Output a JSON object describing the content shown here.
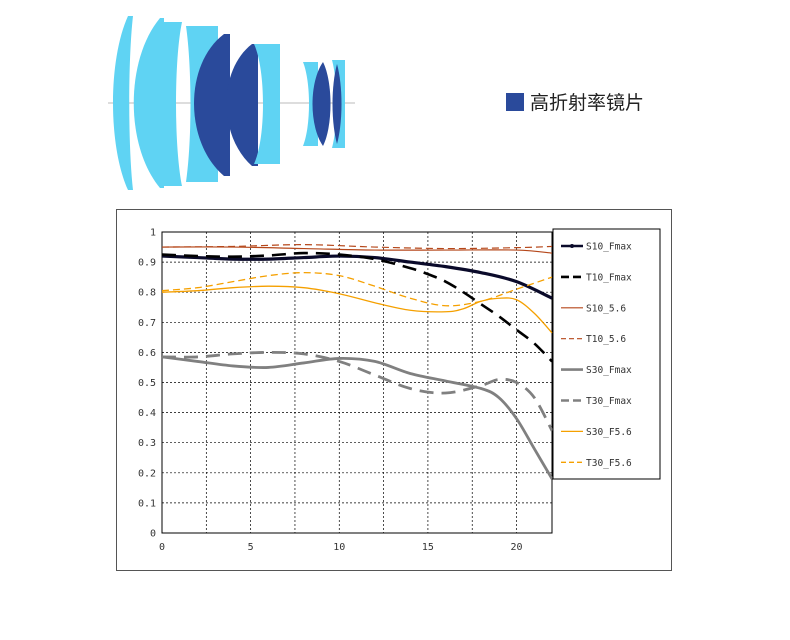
{
  "lens_legend": {
    "label": "高折射率镜片",
    "color": "#2a4a9b"
  },
  "colors": {
    "light_lens": "#5fd3f3",
    "dark_lens": "#2a4a9b"
  },
  "chart_data": {
    "type": "line",
    "title": "",
    "xlabel": "",
    "ylabel": "",
    "xlim": [
      0,
      22
    ],
    "ylim": [
      0,
      1
    ],
    "x_ticks": [
      0,
      5,
      10,
      15,
      20
    ],
    "y_ticks": [
      0.1,
      0.2,
      0.3,
      0.4,
      0.5,
      0.6,
      0.7,
      0.8,
      0.9,
      1
    ],
    "y_tick_labels": [
      "0.1",
      "0.2",
      "0.3",
      "0.4",
      "0.5",
      "0.6",
      "0.7",
      "0.8",
      "0.9",
      "1"
    ],
    "grid": true,
    "legend_position": "right",
    "series": [
      {
        "name": "S10_Fmax",
        "color": "#0a0a2a",
        "dash": "solid",
        "width": 3.2,
        "x": [
          0,
          2,
          4,
          6,
          8,
          10,
          12,
          14,
          16,
          18,
          20,
          22
        ],
        "y": [
          0.92,
          0.915,
          0.91,
          0.91,
          0.915,
          0.92,
          0.915,
          0.9,
          0.885,
          0.865,
          0.835,
          0.78
        ]
      },
      {
        "name": "T10_Fmax",
        "color": "#000000",
        "dash": "dashed",
        "width": 2.6,
        "x": [
          0,
          2,
          4,
          6,
          8,
          10,
          12,
          14,
          15,
          16,
          17,
          18,
          19,
          20,
          21,
          22
        ],
        "y": [
          0.925,
          0.92,
          0.918,
          0.922,
          0.93,
          0.925,
          0.91,
          0.88,
          0.86,
          0.835,
          0.8,
          0.76,
          0.72,
          0.675,
          0.63,
          0.57
        ]
      },
      {
        "name": "S10_5.6",
        "color": "#b5471a",
        "dash": "solid",
        "width": 1.2,
        "x": [
          0,
          4,
          8,
          12,
          16,
          20,
          22
        ],
        "y": [
          0.95,
          0.95,
          0.945,
          0.94,
          0.94,
          0.94,
          0.93
        ]
      },
      {
        "name": "T10_5.6",
        "color": "#b5471a",
        "dash": "dashed",
        "width": 1.2,
        "x": [
          0,
          4,
          8,
          12,
          16,
          20,
          22
        ],
        "y": [
          0.95,
          0.952,
          0.958,
          0.95,
          0.945,
          0.948,
          0.952
        ]
      },
      {
        "name": "S30_Fmax",
        "color": "#808080",
        "dash": "solid",
        "width": 2.8,
        "x": [
          0,
          2,
          4,
          6,
          8,
          10,
          12,
          14,
          16,
          18,
          19,
          20,
          21,
          22
        ],
        "y": [
          0.585,
          0.57,
          0.555,
          0.55,
          0.565,
          0.58,
          0.57,
          0.53,
          0.505,
          0.48,
          0.45,
          0.38,
          0.28,
          0.18
        ]
      },
      {
        "name": "T30_Fmax",
        "color": "#808080",
        "dash": "dashed",
        "width": 2.8,
        "x": [
          0,
          2,
          4,
          6,
          8,
          10,
          12,
          14,
          16,
          18,
          19,
          20,
          21,
          22
        ],
        "y": [
          0.585,
          0.585,
          0.595,
          0.6,
          0.595,
          0.57,
          0.525,
          0.48,
          0.465,
          0.49,
          0.51,
          0.5,
          0.45,
          0.34
        ]
      },
      {
        "name": "S30_F5.6",
        "color": "#f5a000",
        "dash": "solid",
        "width": 1.3,
        "x": [
          0,
          2,
          4,
          6,
          8,
          10,
          12,
          14,
          16,
          17,
          18,
          19,
          20,
          21,
          22
        ],
        "y": [
          0.8,
          0.805,
          0.815,
          0.82,
          0.815,
          0.795,
          0.765,
          0.74,
          0.735,
          0.745,
          0.77,
          0.78,
          0.775,
          0.73,
          0.665
        ]
      },
      {
        "name": "T30_F5.6",
        "color": "#f5a000",
        "dash": "dashed",
        "width": 1.3,
        "x": [
          0,
          2,
          4,
          6,
          8,
          10,
          12,
          14,
          16,
          18,
          20,
          22
        ],
        "y": [
          0.805,
          0.815,
          0.835,
          0.855,
          0.865,
          0.855,
          0.82,
          0.78,
          0.755,
          0.77,
          0.81,
          0.85
        ]
      }
    ]
  }
}
